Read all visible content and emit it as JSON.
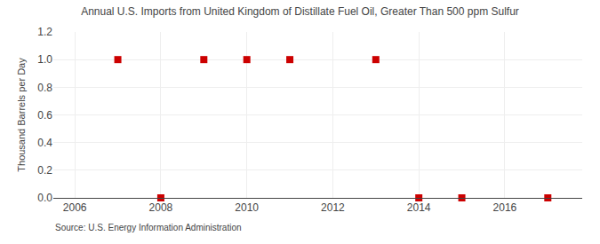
{
  "chart_data": {
    "type": "scatter",
    "title": "Annual U.S. Imports from United Kingdom of Distillate Fuel Oil, Greater Than 500 ppm Sulfur",
    "ylabel": "Thousand Barrels per Day",
    "annotations": [
      "Source: U.S. Energy Information Administration"
    ],
    "x": [
      2007,
      2008,
      2009,
      2010,
      2011,
      2013,
      2014,
      2015,
      2017
    ],
    "values": [
      1.0,
      0.0,
      1.0,
      1.0,
      1.0,
      1.0,
      0.0,
      0.0,
      0.0
    ],
    "color": "#cc0000",
    "marker": "square",
    "xlim": [
      2005.5,
      2017.8
    ],
    "ylim": [
      0.0,
      1.2
    ],
    "xticks": [
      2006,
      2008,
      2010,
      2012,
      2014,
      2016
    ],
    "yticks": [
      {
        "value": 0.0,
        "label": "0.0"
      },
      0.2,
      0.4,
      0.6,
      0.8,
      {
        "value": 1.0,
        "label": "1.0"
      },
      1.2
    ],
    "grid": true
  }
}
